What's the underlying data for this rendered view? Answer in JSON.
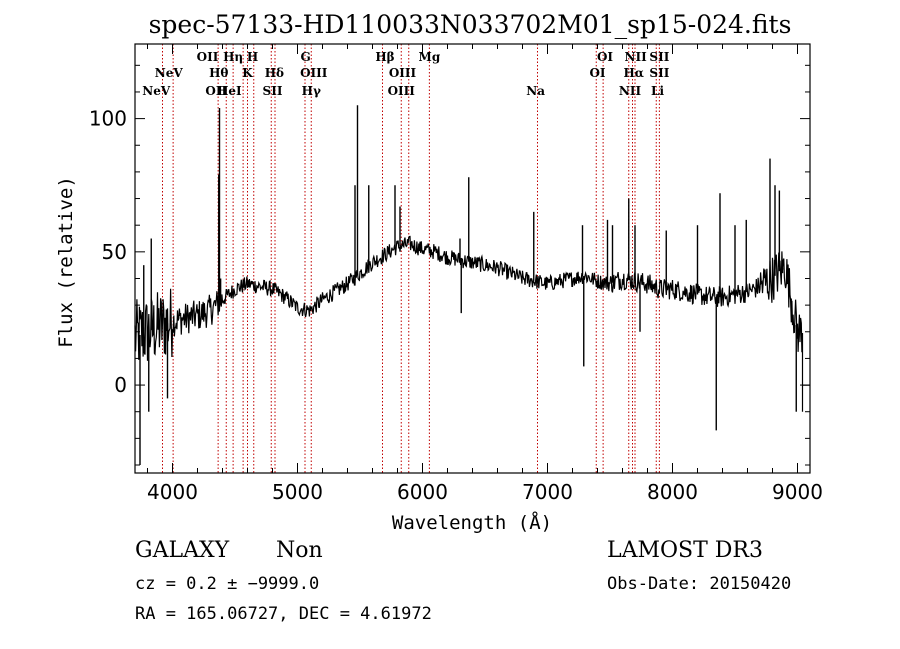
{
  "chart_data": {
    "type": "line",
    "title": "spec-57133-HD110033N033702M01_sp15-024.fits",
    "xlabel": "Wavelength (Å)",
    "ylabel": "Flux (relative)",
    "xlim": [
      3700,
      9100
    ],
    "ylim": [
      -33,
      128
    ],
    "xticks": [
      4000,
      5000,
      6000,
      7000,
      8000,
      9000
    ],
    "yticks": [
      0,
      50,
      100
    ],
    "xtick_labels": [
      "4000",
      "5000",
      "6000",
      "7000",
      "8000",
      "9000"
    ],
    "ytick_labels": [
      "0",
      "50",
      "100"
    ],
    "series": [
      {
        "name": "spectrum",
        "continuum_x": [
          3700,
          3800,
          3900,
          4000,
          4100,
          4200,
          4300,
          4350,
          4400,
          4500,
          4600,
          4700,
          4800,
          4900,
          5000,
          5100,
          5200,
          5300,
          5400,
          5500,
          5600,
          5700,
          5800,
          5900,
          6000,
          6100,
          6200,
          6300,
          6400,
          6500,
          6600,
          6700,
          6800,
          6900,
          7000,
          7100,
          7200,
          7300,
          7400,
          7500,
          7600,
          7700,
          7800,
          7900,
          8000,
          8100,
          8200,
          8300,
          8400,
          8500,
          8600,
          8700,
          8800,
          8900,
          9000
        ],
        "continuum_y": [
          18,
          20,
          22,
          24,
          25,
          26,
          28,
          30,
          32,
          36,
          38,
          37,
          36,
          33,
          29,
          28,
          32,
          35,
          38,
          42,
          46,
          49,
          52,
          53,
          51,
          50,
          48,
          47,
          46,
          45,
          44,
          42,
          40,
          39,
          38,
          39,
          40,
          41,
          39,
          38,
          40,
          39,
          38,
          36,
          36,
          35,
          34,
          33,
          33,
          34,
          35,
          37,
          40,
          45,
          20
        ],
        "spikes": [
          {
            "x": 3740,
            "y": -30
          },
          {
            "x": 3770,
            "y": 45
          },
          {
            "x": 3810,
            "y": -10
          },
          {
            "x": 3830,
            "y": 55
          },
          {
            "x": 3960,
            "y": -5
          },
          {
            "x": 4370,
            "y": 79
          },
          {
            "x": 4376,
            "y": 104
          },
          {
            "x": 4385,
            "y": 40
          },
          {
            "x": 5460,
            "y": 75
          },
          {
            "x": 5480,
            "y": 105
          },
          {
            "x": 5570,
            "y": 75
          },
          {
            "x": 5780,
            "y": 75
          },
          {
            "x": 5820,
            "y": 67
          },
          {
            "x": 6300,
            "y": 55
          },
          {
            "x": 6310,
            "y": 27
          },
          {
            "x": 6370,
            "y": 78
          },
          {
            "x": 6890,
            "y": 65
          },
          {
            "x": 7280,
            "y": 60
          },
          {
            "x": 7290,
            "y": 7
          },
          {
            "x": 7480,
            "y": 62
          },
          {
            "x": 7520,
            "y": 60
          },
          {
            "x": 7650,
            "y": 70
          },
          {
            "x": 7700,
            "y": 60
          },
          {
            "x": 7740,
            "y": 20
          },
          {
            "x": 7950,
            "y": 58
          },
          {
            "x": 8200,
            "y": 60
          },
          {
            "x": 8350,
            "y": -17
          },
          {
            "x": 8380,
            "y": 72
          },
          {
            "x": 8500,
            "y": 60
          },
          {
            "x": 8590,
            "y": 62
          },
          {
            "x": 8780,
            "y": 85
          },
          {
            "x": 8820,
            "y": 75
          },
          {
            "x": 8855,
            "y": 73
          },
          {
            "x": 8880,
            "y": 42
          },
          {
            "x": 8950,
            "y": 30
          },
          {
            "x": 8990,
            "y": -10
          }
        ]
      }
    ],
    "line_markers": [
      {
        "label": "NeV",
        "wavelength": 3870,
        "row": 3
      },
      {
        "label": "NeV",
        "wavelength": 3970,
        "row": 2
      },
      {
        "label": "OII",
        "wavelength": 4280,
        "row": 1
      },
      {
        "label": "Hη",
        "wavelength": 4485,
        "row": 1
      },
      {
        "label": "Hθ",
        "wavelength": 4370,
        "row": 2
      },
      {
        "label": "OII",
        "wavelength": 4350,
        "row": 3
      },
      {
        "label": "H",
        "wavelength": 4640,
        "row": 1
      },
      {
        "label": "K",
        "wavelength": 4600,
        "row": 2
      },
      {
        "label": "HeI",
        "wavelength": 4455,
        "row": 3
      },
      {
        "label": "Hδ",
        "wavelength": 4815,
        "row": 2
      },
      {
        "label": "SII",
        "wavelength": 4800,
        "row": 3
      },
      {
        "label": "G",
        "wavelength": 5065,
        "row": 1
      },
      {
        "label": "OIII",
        "wavelength": 5130,
        "row": 2
      },
      {
        "label": "Hγ",
        "wavelength": 5110,
        "row": 3
      },
      {
        "label": "Hβ",
        "wavelength": 5700,
        "row": 1
      },
      {
        "label": "OIII",
        "wavelength": 5840,
        "row": 2
      },
      {
        "label": "OIII",
        "wavelength": 5830,
        "row": 3
      },
      {
        "label": "Mg",
        "wavelength": 6055,
        "row": 1
      },
      {
        "label": "Na",
        "wavelength": 6905,
        "row": 3
      },
      {
        "label": "OI",
        "wavelength": 7460,
        "row": 1
      },
      {
        "label": "OI",
        "wavelength": 7400,
        "row": 2
      },
      {
        "label": "NII",
        "wavelength": 7705,
        "row": 1
      },
      {
        "label": "Hα",
        "wavelength": 7690,
        "row": 2
      },
      {
        "label": "NII",
        "wavelength": 7660,
        "row": 3
      },
      {
        "label": "SII",
        "wavelength": 7895,
        "row": 1
      },
      {
        "label": "SII",
        "wavelength": 7895,
        "row": 2
      },
      {
        "label": "Li",
        "wavelength": 7880,
        "row": 3
      }
    ],
    "marker_lines": [
      3920,
      4005,
      4365,
      4430,
      4485,
      4565,
      4600,
      4650,
      4790,
      4820,
      5060,
      5110,
      5680,
      5830,
      5890,
      6055,
      6920,
      7390,
      7445,
      7650,
      7680,
      7700,
      7870,
      7895
    ],
    "colors": {
      "spectrum": "#000000",
      "markers": "#c00000",
      "frame": "#000000"
    }
  },
  "info": {
    "object_class": "GALAXY",
    "subclass": "Non",
    "cz": "cz = 0.2 ± −9999.0",
    "radec": "RA = 165.06727, DEC =    4.61972",
    "survey": "LAMOST DR3",
    "obs_date": "Obs-Date: 20150420"
  }
}
